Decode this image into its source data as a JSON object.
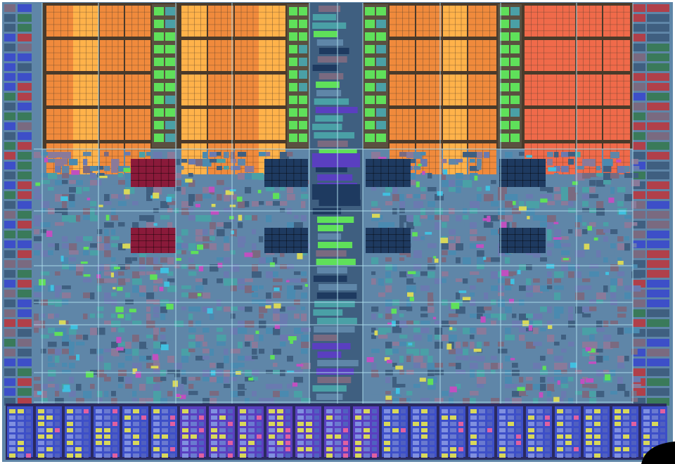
{
  "image": {
    "subject": "die-photograph",
    "palette": {
      "cache_orange": "#f08a3c",
      "cache_orange_hi": "#ffb24a",
      "cache_red": "#f06a4a",
      "cache_gutter": "#4a3a2a",
      "tag_green": "#5fe05a",
      "core_blue": "#5f86a8",
      "core_dark": "#3f5f80",
      "logic_teal": "#4aa0a6",
      "array_magenta": "#8a1a3a",
      "array_navy": "#1e3a60",
      "io_blue": "#3d4fc8",
      "io_purple": "#5a3fc0",
      "io_yellow": "#d8d85a",
      "edge_pad": "#7a6a80",
      "edge_pad_red": "#b0404a",
      "edge_pad_green": "#3a7a5a",
      "route_line": "#a8d8e8",
      "background": "#ffffff",
      "notch": "#000000"
    }
  }
}
